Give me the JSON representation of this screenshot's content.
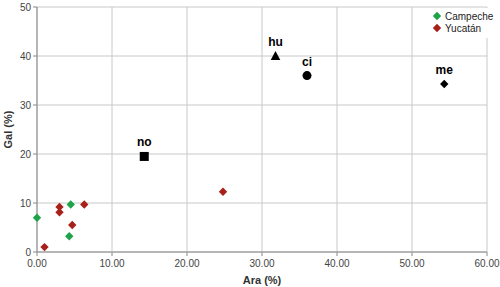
{
  "chart_data": {
    "type": "scatter",
    "x_label": "Ara (%)",
    "y_label": "Gal (%)",
    "xlim": [
      0,
      60
    ],
    "ylim": [
      0,
      50
    ],
    "xticks": [
      {
        "value": 0,
        "label": "0.00"
      },
      {
        "value": 10,
        "label": "10.00"
      },
      {
        "value": 20,
        "label": "20.00"
      },
      {
        "value": 30,
        "label": "30.00"
      },
      {
        "value": 40,
        "label": "40.00"
      },
      {
        "value": 50,
        "label": "50.00"
      },
      {
        "value": 60,
        "label": "60.00"
      }
    ],
    "yticks": [
      0,
      10,
      20,
      30,
      40,
      50
    ],
    "grid": true,
    "legend": "top-right",
    "series": [
      {
        "name": "Campeche",
        "color": "#1fa34a",
        "marker": "diamond",
        "x": [
          0,
          4.5,
          4.3
        ],
        "values": [
          7,
          9.7,
          3.2
        ]
      },
      {
        "name": "Yucatán",
        "color": "#a8201a",
        "marker": "diamond",
        "x": [
          1,
          3,
          3,
          4.7,
          6.3,
          24.8
        ],
        "values": [
          1,
          9.2,
          8.1,
          5.5,
          9.7,
          12.3
        ]
      }
    ],
    "annotations": [
      {
        "text": "hu",
        "x": 31.8,
        "y": 40,
        "marker": "triangle",
        "color": "#000000"
      },
      {
        "text": "ci",
        "x": 36,
        "y": 36,
        "marker": "circle",
        "color": "#000000"
      },
      {
        "text": "no",
        "x": 14.3,
        "y": 19.5,
        "marker": "square",
        "color": "#000000"
      },
      {
        "text": "me",
        "x": 54.3,
        "y": 34.3,
        "marker": "diamond",
        "color": "#000000"
      }
    ]
  }
}
